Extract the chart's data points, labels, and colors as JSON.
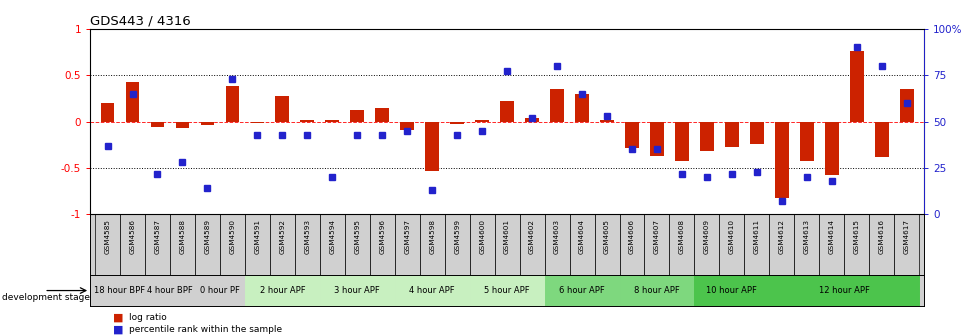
{
  "title": "GDS443 / 4316",
  "samples": [
    "GSM4585",
    "GSM4586",
    "GSM4587",
    "GSM4588",
    "GSM4589",
    "GSM4590",
    "GSM4591",
    "GSM4592",
    "GSM4593",
    "GSM4594",
    "GSM4595",
    "GSM4596",
    "GSM4597",
    "GSM4598",
    "GSM4599",
    "GSM4600",
    "GSM4601",
    "GSM4602",
    "GSM4603",
    "GSM4604",
    "GSM4605",
    "GSM4606",
    "GSM4607",
    "GSM4608",
    "GSM4609",
    "GSM4610",
    "GSM4611",
    "GSM4612",
    "GSM4613",
    "GSM4614",
    "GSM4615",
    "GSM4616",
    "GSM4617"
  ],
  "log_ratio": [
    0.2,
    0.42,
    -0.06,
    -0.07,
    -0.04,
    0.38,
    -0.02,
    0.27,
    0.02,
    0.02,
    0.12,
    0.15,
    -0.09,
    -0.53,
    -0.03,
    0.02,
    0.22,
    0.04,
    0.35,
    0.3,
    0.02,
    -0.28,
    -0.37,
    -0.42,
    -0.32,
    -0.27,
    -0.24,
    -0.82,
    -0.43,
    -0.58,
    0.76,
    -0.38,
    0.35
  ],
  "percentile": [
    37,
    65,
    22,
    28,
    14,
    73,
    43,
    43,
    43,
    20,
    43,
    43,
    45,
    13,
    43,
    45,
    77,
    52,
    80,
    65,
    53,
    35,
    35,
    22,
    20,
    22,
    23,
    7,
    20,
    18,
    90,
    80,
    60
  ],
  "stages": [
    {
      "label": "18 hour BPF",
      "start": 0,
      "end": 2,
      "color": "#d0d0d0"
    },
    {
      "label": "4 hour BPF",
      "start": 2,
      "end": 4,
      "color": "#d0d0d0"
    },
    {
      "label": "0 hour PF",
      "start": 4,
      "end": 6,
      "color": "#d0d0d0"
    },
    {
      "label": "2 hour APF",
      "start": 6,
      "end": 9,
      "color": "#c8f0c0"
    },
    {
      "label": "3 hour APF",
      "start": 9,
      "end": 12,
      "color": "#c8f0c0"
    },
    {
      "label": "4 hour APF",
      "start": 12,
      "end": 15,
      "color": "#c8f0c0"
    },
    {
      "label": "5 hour APF",
      "start": 15,
      "end": 18,
      "color": "#c8f0c0"
    },
    {
      "label": "6 hour APF",
      "start": 18,
      "end": 21,
      "color": "#7ed87e"
    },
    {
      "label": "8 hour APF",
      "start": 21,
      "end": 24,
      "color": "#7ed87e"
    },
    {
      "label": "10 hour APF",
      "start": 24,
      "end": 27,
      "color": "#4cc44c"
    },
    {
      "label": "12 hour APF",
      "start": 27,
      "end": 33,
      "color": "#4cc44c"
    }
  ],
  "bar_color": "#cc2200",
  "point_color": "#2222cc",
  "ylim": [
    -1.0,
    1.0
  ],
  "right_ylim": [
    0,
    100
  ],
  "right_yticks": [
    0,
    25,
    50,
    75,
    100
  ],
  "right_yticklabels": [
    "0",
    "25",
    "50",
    "75",
    "100%"
  ],
  "left_yticks": [
    -1.0,
    -0.5,
    0.0,
    0.5,
    1.0
  ],
  "left_yticklabels": [
    "-1",
    "-0.5",
    "0",
    "0.5",
    "1"
  ],
  "dotted_lines": [
    -0.5,
    0.5
  ],
  "legend_log_ratio": "log ratio",
  "legend_percentile": "percentile rank within the sample",
  "dev_stage_label": "development stage",
  "sample_row_bg": "#d0d0d0"
}
